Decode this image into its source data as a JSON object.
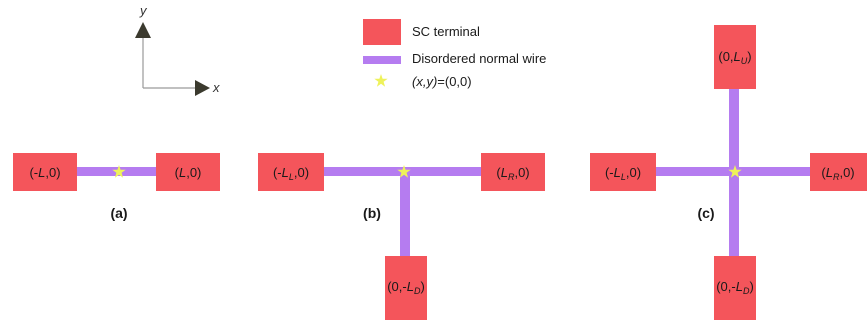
{
  "axes": {
    "y_label": "y",
    "x_label": "x"
  },
  "legend": {
    "sc_terminal": "SC terminal",
    "normal_wire": "Disordered normal wire",
    "origin_prefix": "(x,y)",
    "origin_value": "=(0,0)"
  },
  "panels": {
    "a": {
      "label": "(a)",
      "left": {
        "pre": "(-",
        "main": "L",
        "sub": "",
        "post": ",0)"
      },
      "right": {
        "pre": "(",
        "main": "L",
        "sub": "",
        "post": ",0)"
      }
    },
    "b": {
      "label": "(b)",
      "left": {
        "pre": "(-",
        "main": "L",
        "sub": "L",
        "post": ",0)"
      },
      "right": {
        "pre": "(",
        "main": "L",
        "sub": "R",
        "post": ",0)"
      },
      "down": {
        "pre": "(0,-",
        "main": "L",
        "sub": "D",
        "post": ")"
      }
    },
    "c": {
      "label": "(c)",
      "left": {
        "pre": "(-",
        "main": "L",
        "sub": "L",
        "post": ",0)"
      },
      "right": {
        "pre": "(",
        "main": "L",
        "sub": "R",
        "post": ",0)"
      },
      "up": {
        "pre": "(0,",
        "main": "L",
        "sub": "U",
        "post": ")"
      },
      "down": {
        "pre": "(0,-",
        "main": "L",
        "sub": "D",
        "post": ")"
      }
    }
  },
  "colors": {
    "terminal": "#f4555b",
    "wire": "#b57cf0",
    "star": "#eef25a",
    "axis": "#3b3a2e"
  }
}
